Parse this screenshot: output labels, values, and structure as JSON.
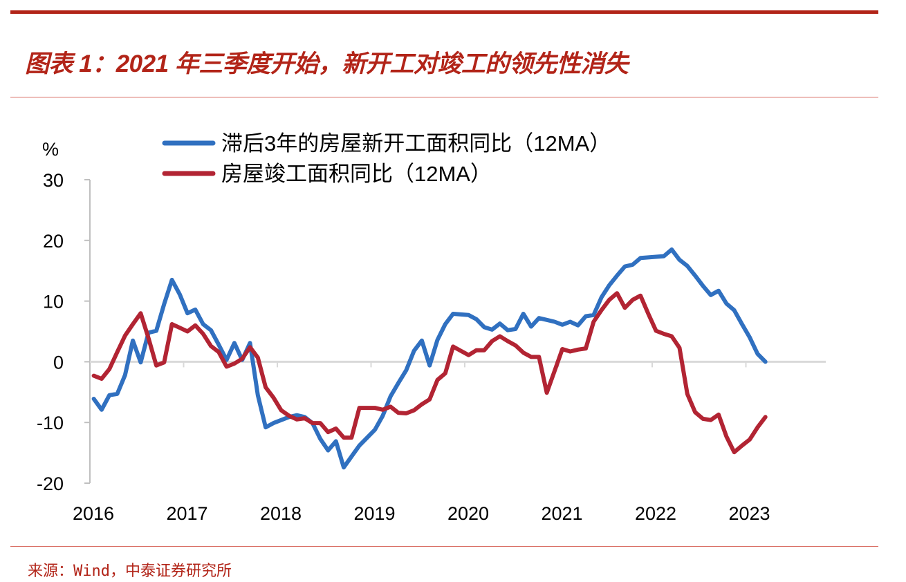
{
  "header": {
    "title": "图表 1：2021 年三季度开始，新开工对竣工的领先性消失"
  },
  "footer": {
    "source": "来源：Wind，中泰证券研究所"
  },
  "chart_data": {
    "type": "line",
    "title": "",
    "xlabel": "",
    "ylabel": "%",
    "ylim": [
      -20,
      30
    ],
    "yticks": [
      "-20",
      "-10",
      "0",
      "10",
      "20",
      "30"
    ],
    "xticks": [
      "2016",
      "2017",
      "2018",
      "2019",
      "2020",
      "2021",
      "2022",
      "2023"
    ],
    "grid": false,
    "legend": "top",
    "colors": {
      "starts": "#3070c0",
      "completions": "#b22433",
      "title": "#b22418"
    },
    "x": [
      "2016-01",
      "2016-02",
      "2016-03",
      "2016-04",
      "2016-05",
      "2016-06",
      "2016-07",
      "2016-08",
      "2016-09",
      "2016-10",
      "2016-11",
      "2016-12",
      "2017-01",
      "2017-02",
      "2017-03",
      "2017-04",
      "2017-05",
      "2017-06",
      "2017-07",
      "2017-08",
      "2017-09",
      "2017-10",
      "2017-11",
      "2017-12",
      "2018-01",
      "2018-02",
      "2018-03",
      "2018-04",
      "2018-05",
      "2018-06",
      "2018-07",
      "2018-08",
      "2018-09",
      "2018-10",
      "2018-11",
      "2018-12",
      "2019-01",
      "2019-02",
      "2019-03",
      "2019-04",
      "2019-05",
      "2019-06",
      "2019-07",
      "2019-08",
      "2019-09",
      "2019-10",
      "2019-11",
      "2019-12",
      "2020-01",
      "2020-02",
      "2020-03",
      "2020-04",
      "2020-05",
      "2020-06",
      "2020-07",
      "2020-08",
      "2020-09",
      "2020-10",
      "2020-11",
      "2020-12",
      "2021-01",
      "2021-02",
      "2021-03",
      "2021-04",
      "2021-05",
      "2021-06",
      "2021-07",
      "2021-08",
      "2021-09",
      "2021-10",
      "2021-11",
      "2021-12",
      "2022-01",
      "2022-02",
      "2022-03",
      "2022-04",
      "2022-05",
      "2022-06",
      "2022-07",
      "2022-08",
      "2022-09",
      "2022-10",
      "2022-11",
      "2022-12",
      "2023-01",
      "2023-02",
      "2023-03"
    ],
    "series": [
      {
        "name": "滞后3年的房屋新开工面积同比（12MA）",
        "key": "starts",
        "values": [
          -6.1,
          -7.9,
          -5.5,
          -5.3,
          -2.2,
          3.5,
          -0.1,
          4.8,
          5.1,
          9.5,
          13.5,
          11.1,
          8.0,
          8.6,
          6.2,
          5.2,
          2.8,
          0.3,
          3.1,
          0.3,
          3.1,
          -5.5,
          -10.8,
          -10.1,
          -9.6,
          -9.1,
          -8.8,
          -9.1,
          -10.1,
          -12.7,
          -14.6,
          -13.1,
          -17.4,
          -15.6,
          -13.8,
          -12.5,
          -11.2,
          -8.9,
          -5.7,
          -3.5,
          -1.4,
          1.8,
          3.5,
          -0.6,
          3.6,
          6.2,
          7.9,
          7.8,
          7.7,
          7.0,
          5.7,
          5.3,
          6.3,
          5.2,
          5.4,
          7.9,
          5.8,
          7.2,
          6.9,
          6.6,
          6.1,
          6.6,
          6.0,
          7.5,
          7.7,
          10.6,
          12.6,
          14.2,
          15.7,
          16.0,
          17.1,
          17.2,
          17.3,
          17.4,
          18.5,
          16.8,
          15.8,
          14.2,
          12.5,
          11.0,
          11.7,
          9.6,
          8.5,
          6.2,
          4.0,
          1.3,
          0.0
        ]
      },
      {
        "name": "房屋竣工面积同比（12MA）",
        "key": "completions",
        "values": [
          -2.3,
          -2.8,
          -1.2,
          1.6,
          4.3,
          6.2,
          8.0,
          3.9,
          -0.6,
          -0.1,
          6.2,
          5.6,
          5.0,
          6.0,
          4.6,
          2.6,
          1.6,
          -0.8,
          -0.3,
          0.5,
          2.4,
          0.7,
          -4.2,
          -5.9,
          -8.0,
          -8.9,
          -9.5,
          -9.3,
          -10.1,
          -10.1,
          -11.6,
          -11.0,
          -12.5,
          -12.5,
          -7.6,
          -7.6,
          -7.6,
          -7.9,
          -7.4,
          -8.4,
          -8.5,
          -8.0,
          -7.0,
          -6.2,
          -3.0,
          -1.9,
          2.5,
          1.8,
          1.1,
          1.9,
          1.9,
          3.4,
          4.2,
          3.4,
          2.7,
          1.5,
          0.8,
          0.8,
          -5.1,
          -1.5,
          2.1,
          1.7,
          2.0,
          2.2,
          6.6,
          8.5,
          10.2,
          11.3,
          8.9,
          10.2,
          10.9,
          7.9,
          5.1,
          4.6,
          4.2,
          2.3,
          -5.3,
          -8.3,
          -9.4,
          -9.6,
          -8.7,
          -12.3,
          -14.9,
          -13.8,
          -12.8,
          -10.8,
          -9.1
        ]
      }
    ]
  }
}
